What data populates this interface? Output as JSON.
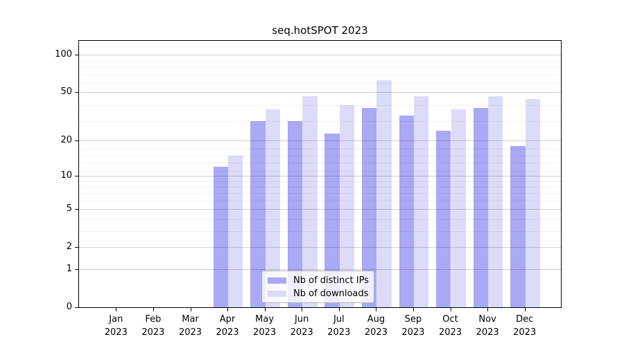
{
  "title": "seq.hotSPOT 2023",
  "chart_data": {
    "type": "bar",
    "title": "seq.hotSPOT 2023",
    "x_categories": [
      {
        "month": "Jan",
        "year": "2023"
      },
      {
        "month": "Feb",
        "year": "2023"
      },
      {
        "month": "Mar",
        "year": "2023"
      },
      {
        "month": "Apr",
        "year": "2023"
      },
      {
        "month": "May",
        "year": "2023"
      },
      {
        "month": "Jun",
        "year": "2023"
      },
      {
        "month": "Jul",
        "year": "2023"
      },
      {
        "month": "Aug",
        "year": "2023"
      },
      {
        "month": "Sep",
        "year": "2023"
      },
      {
        "month": "Oct",
        "year": "2023"
      },
      {
        "month": "Nov",
        "year": "2023"
      },
      {
        "month": "Dec",
        "year": "2023"
      }
    ],
    "series": [
      {
        "name": "Nb of distinct IPs",
        "color": "#a9a9f6",
        "values": [
          0,
          0,
          0,
          12,
          29,
          29,
          23,
          37,
          32,
          24,
          37,
          18
        ]
      },
      {
        "name": "Nb of downloads",
        "color": "#dcdcf9",
        "values": [
          0,
          0,
          0,
          15,
          36,
          46,
          39,
          62,
          46,
          36,
          46,
          44
        ]
      }
    ],
    "y_axis": {
      "scale": "log10(1+x)",
      "tick_values": [
        0,
        1,
        2,
        5,
        10,
        20,
        50,
        100
      ],
      "tick_labels": [
        "0",
        "1",
        "2",
        "5",
        "10",
        "20",
        "50",
        "100"
      ],
      "minor_gridline_values": [
        3,
        4,
        6,
        7,
        8,
        9,
        11,
        13,
        15,
        17,
        29,
        39,
        59,
        69,
        79,
        89
      ],
      "range": [
        0,
        126
      ]
    },
    "grid": true,
    "legend": {
      "position": "lower-center",
      "entries": [
        "Nb of distinct IPs",
        "Nb of downloads"
      ]
    },
    "colors": {
      "background": "#ffffff",
      "spine": "#000000",
      "bar_dark": "#a9a9f6",
      "bar_light": "#dcdcf9",
      "legend_border": "#b0b0b0"
    }
  }
}
